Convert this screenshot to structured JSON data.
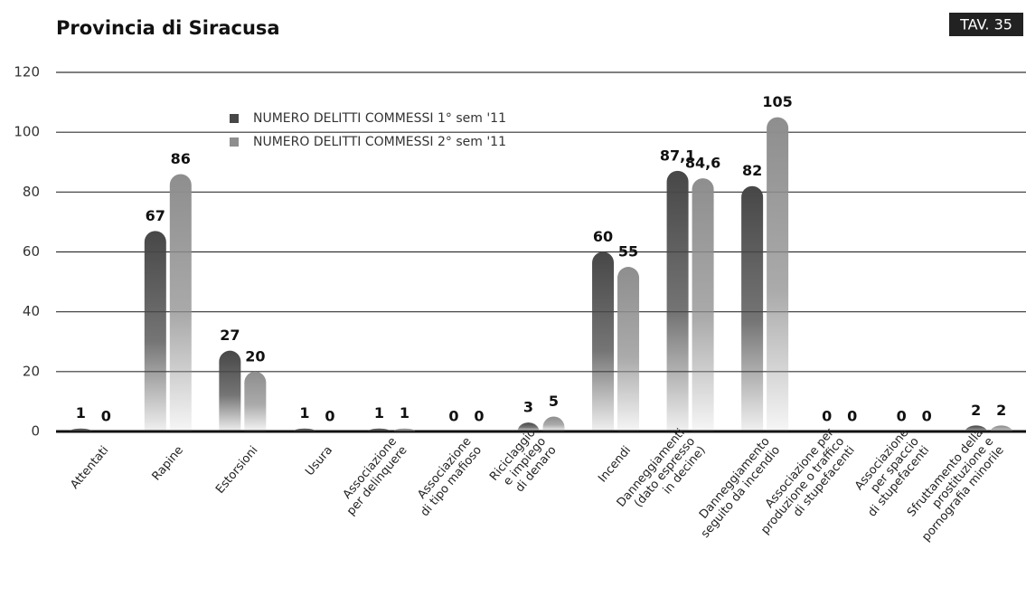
{
  "chart_data": {
    "type": "bar",
    "title": "Provincia di Siracusa",
    "badge": "TAV. 35",
    "categories": [
      [
        "Attentati"
      ],
      [
        "Rapine"
      ],
      [
        "Estorsioni"
      ],
      [
        "Usura"
      ],
      [
        "Associazione",
        "per delinquere"
      ],
      [
        "Associazione",
        "di tipo mafioso"
      ],
      [
        "Riciclaggio",
        "e impiego",
        "di denaro"
      ],
      [
        "Incendi"
      ],
      [
        "Danneggiamenti",
        "(dato espresso",
        "in decine)"
      ],
      [
        "Danneggiamento",
        "seguito da incendio"
      ],
      [
        "Associazione per",
        "produzione o traffico",
        "di stupefacenti"
      ],
      [
        "Associazione",
        "per spaccio",
        "di stupefacenti"
      ],
      [
        "Sfruttamento della",
        "prostituzione e",
        "pornografia minorile"
      ]
    ],
    "series": [
      {
        "name": "NUMERO DELITTI COMMESSI 1° sem '11",
        "color": "#474747",
        "values": [
          1,
          67,
          27,
          1,
          1,
          0,
          3,
          60,
          87.1,
          82,
          0,
          0,
          2
        ],
        "value_labels": [
          "1",
          "67",
          "27",
          "1",
          "1",
          "0",
          "3",
          "60",
          "87,1",
          "82",
          "0",
          "0",
          "2"
        ]
      },
      {
        "name": "NUMERO DELITTI COMMESSI 2° sem '11",
        "color": "#8e8e8e",
        "values": [
          0,
          86,
          20,
          0,
          1,
          0,
          5,
          55,
          84.6,
          105,
          0,
          0,
          2
        ],
        "value_labels": [
          "0",
          "86",
          "20",
          "0",
          "1",
          "0",
          "5",
          "55",
          "84,6",
          "105",
          "0",
          "0",
          "2"
        ]
      }
    ],
    "ylim": [
      0,
      120
    ],
    "yticks": [
      0,
      20,
      40,
      60,
      80,
      100,
      120
    ],
    "grid": true
  }
}
